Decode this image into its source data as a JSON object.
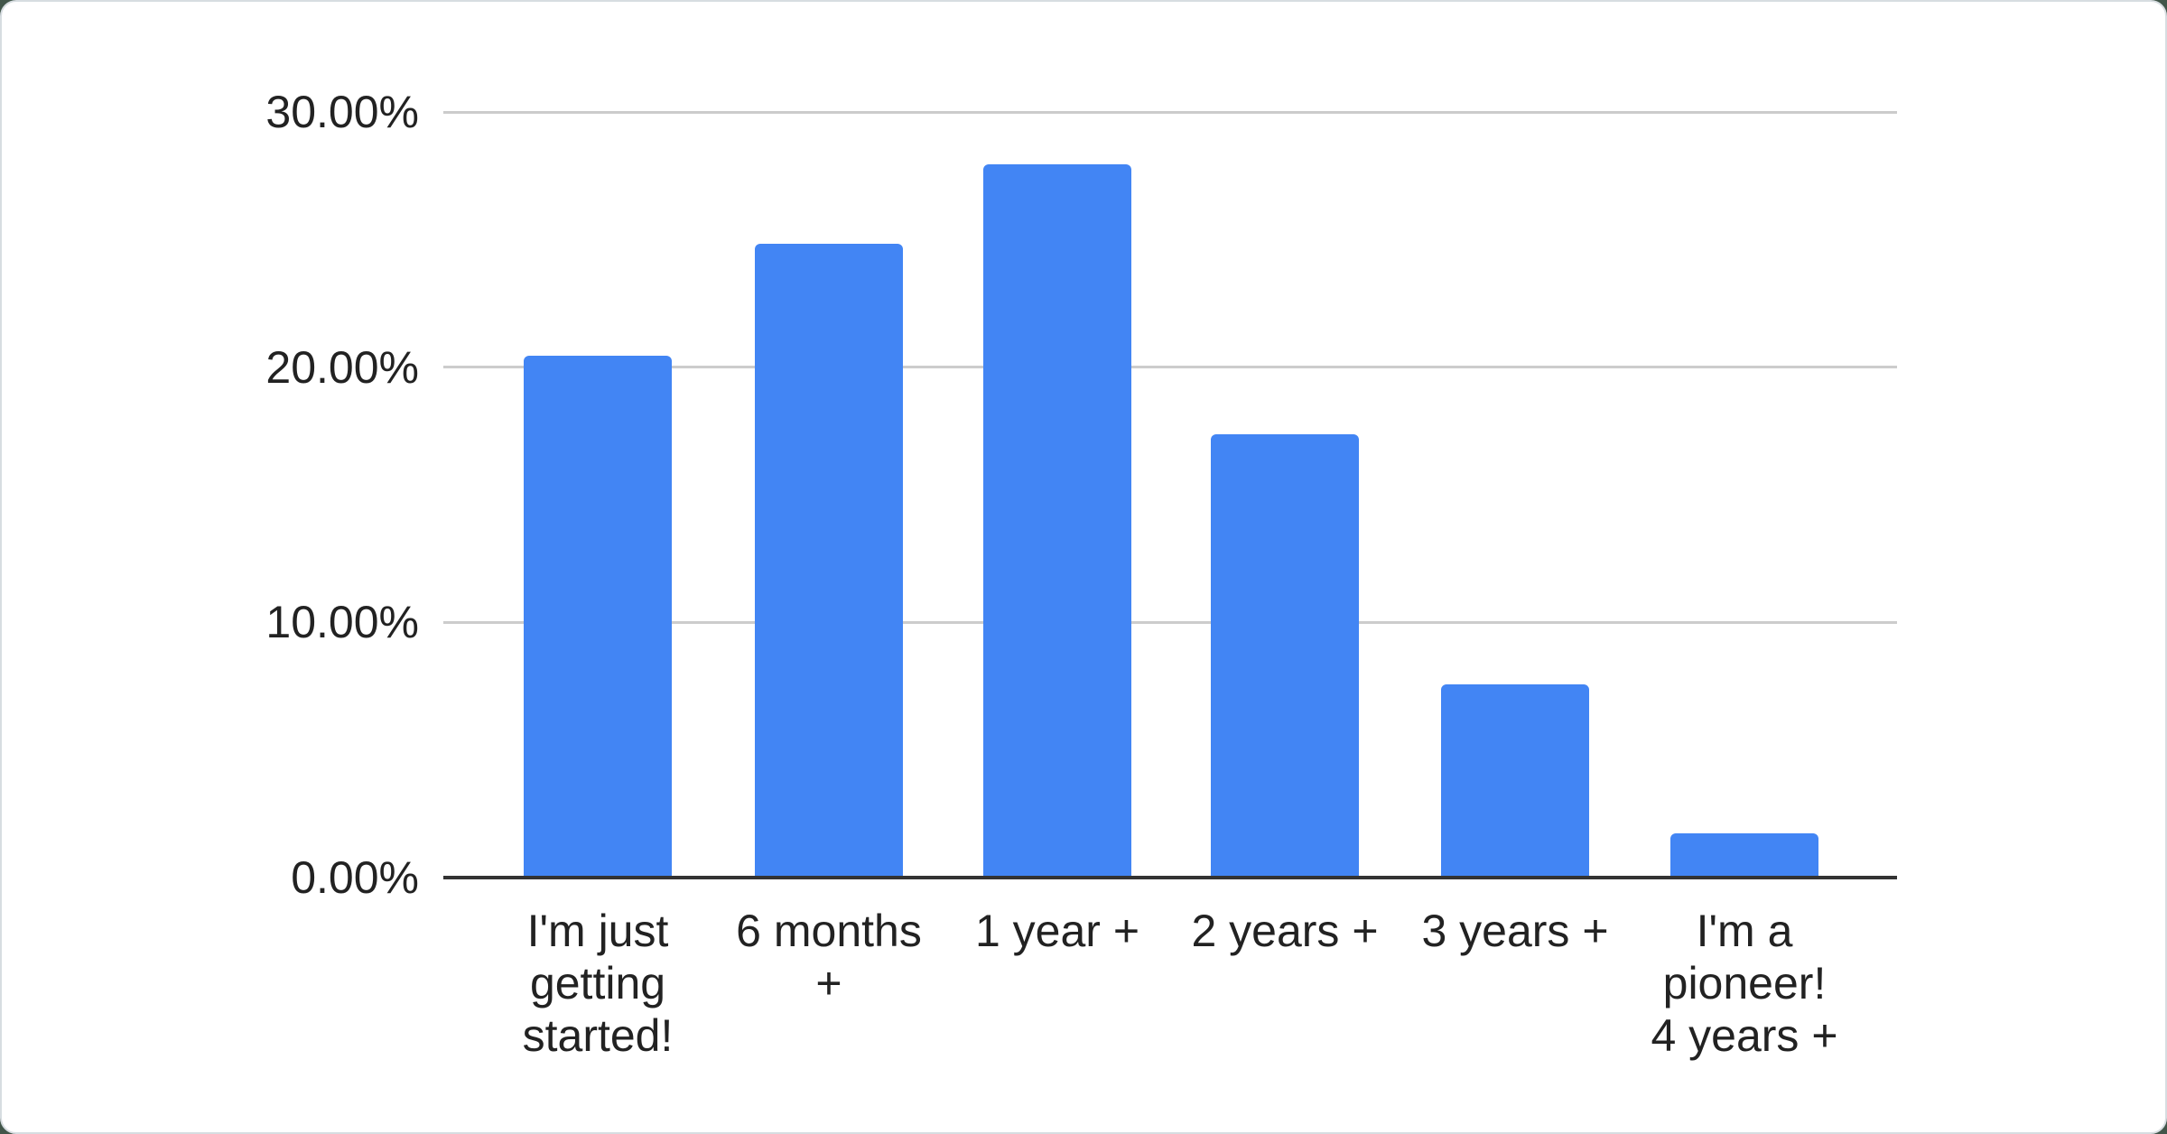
{
  "page": {
    "background_color": "#42564a",
    "card_color": "#ffffff",
    "card_border_color": "#d7dde1"
  },
  "chart_data": {
    "type": "bar",
    "title": "",
    "categories": [
      "I'm just getting started!",
      "6 months +",
      "1 year +",
      "2 years +",
      "3 years +",
      "I'm a pioneer! 4 years +"
    ],
    "values": [
      20.43,
      24.83,
      27.95,
      17.36,
      7.55,
      1.7
    ],
    "value_unit": "%",
    "ylim": [
      0,
      30
    ],
    "y_ticks": [
      {
        "label": "30.00%",
        "value": 30
      },
      {
        "label": "20.00%",
        "value": 20
      },
      {
        "label": "10.00%",
        "value": 10
      },
      {
        "label": "0.00%",
        "value": 0
      }
    ],
    "grid": true,
    "legend_position": "none",
    "bar_color": "#4285f4",
    "gridline_color": "#cccccc",
    "axis_line_color": "#333333",
    "label_color": "#222222"
  }
}
